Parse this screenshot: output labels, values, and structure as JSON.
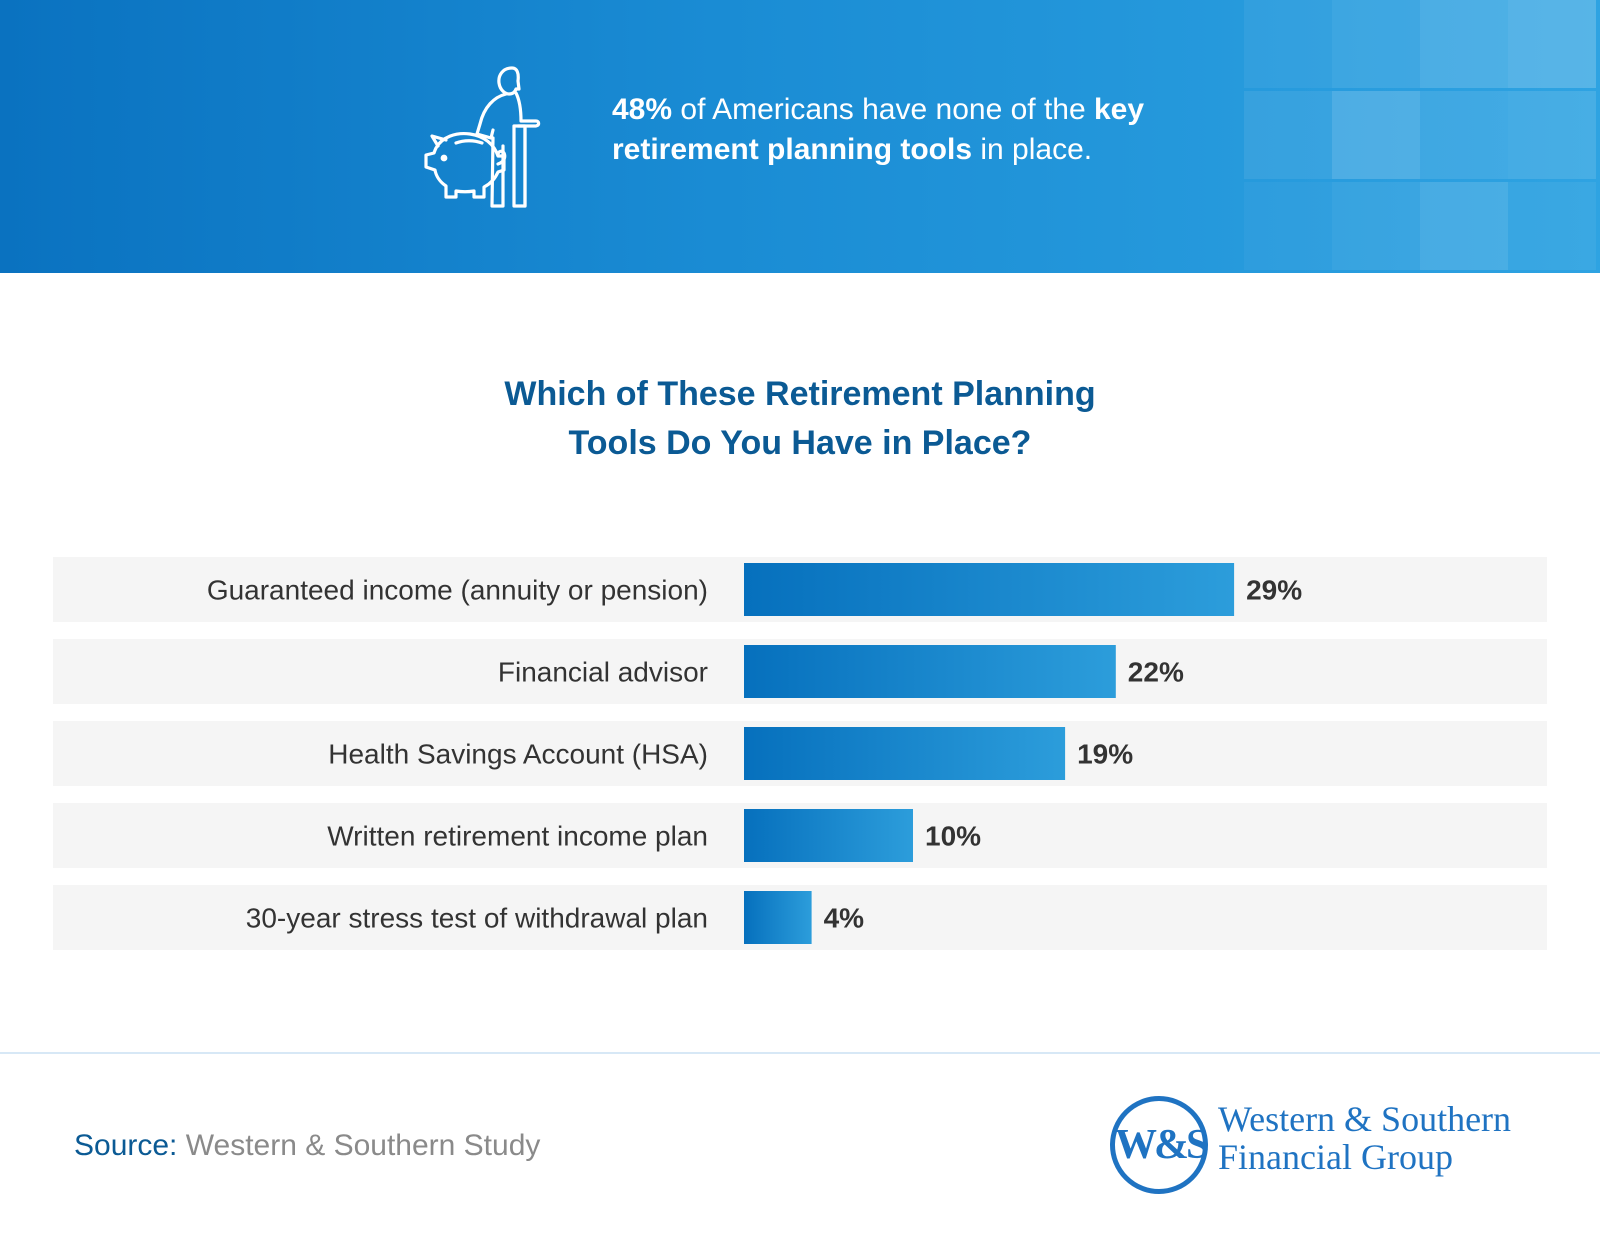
{
  "banner": {
    "icon": "piggy-bank-elderly-person-icon",
    "stat_bold": "48%",
    "stat_text_1": " of Americans have none of the ",
    "stat_bold_2": "key retirement planning tools",
    "stat_text_2": " in place.",
    "background_color": "#1a8cd4"
  },
  "chart_data": {
    "type": "bar",
    "orientation": "horizontal",
    "title": "Which of These Retirement Planning Tools Do You Have in Place?",
    "title_lines": [
      "Which of These Retirement Planning",
      "Tools Do You Have in Place?"
    ],
    "categories": [
      "Guaranteed income (annuity or pension)",
      "Financial advisor",
      "Health Savings Account (HSA)",
      "Written retirement income plan",
      "30-year stress test of withdrawal plan"
    ],
    "values": [
      29,
      22,
      19,
      10,
      4
    ],
    "value_labels": [
      "29%",
      "22%",
      "19%",
      "10%",
      "4%"
    ],
    "unit": "%",
    "xlabel": "",
    "ylabel": "",
    "bar_color_start": "#0670bd",
    "bar_color_end": "#2c9ddb",
    "grid": false,
    "legend": "none"
  },
  "source": {
    "label": "Source:",
    "text": "Western & Southern Study"
  },
  "logo": {
    "mark": "W&S",
    "name_line_1": "Western & Southern",
    "name_line_2": "Financial Group",
    "color": "#1f73c2"
  }
}
